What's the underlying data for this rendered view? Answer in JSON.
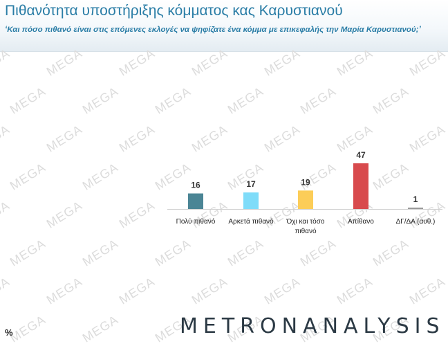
{
  "header": {
    "title": "Πιθανότητα υποστήριξης κόμματος κας Καρυστιανού",
    "subtitle": "‘Και πόσο πιθανό είναι στις επόμενες εκλογές να ψηφίζατε ένα κόμμα με επικεφαλής την Μαρία Καρυστιανού;’"
  },
  "watermark": {
    "text": "MEGA",
    "color": "#dcdcdc"
  },
  "footer": {
    "logo": "METRONANALYSIS",
    "unit_label": "%"
  },
  "chart_data": {
    "type": "bar",
    "title": "Πιθανότητα υποστήριξης κόμματος κας Καρυστιανού",
    "categories": [
      "Πολύ πιθανό",
      "Αρκετά πιθανό",
      "Όχι και τόσο πιθανό",
      "Απίθανο",
      "ΔΓ/ΔΑ (αυθ.)"
    ],
    "category_lines": [
      [
        "Πολύ πιθανό"
      ],
      [
        "Αρκετά πιθανό"
      ],
      [
        "Όχι και τόσο",
        "πιθανό"
      ],
      [
        "Απίθανο"
      ],
      [
        "ΔΓ/ΔΑ (αυθ.)"
      ]
    ],
    "values": [
      16,
      17,
      19,
      47,
      1
    ],
    "colors": [
      "#4b8595",
      "#7fdcf9",
      "#fccd58",
      "#d84a4d",
      "#9a9a9a"
    ],
    "unit": "%",
    "ylim": [
      0,
      47
    ],
    "grid": false,
    "legend": false
  }
}
